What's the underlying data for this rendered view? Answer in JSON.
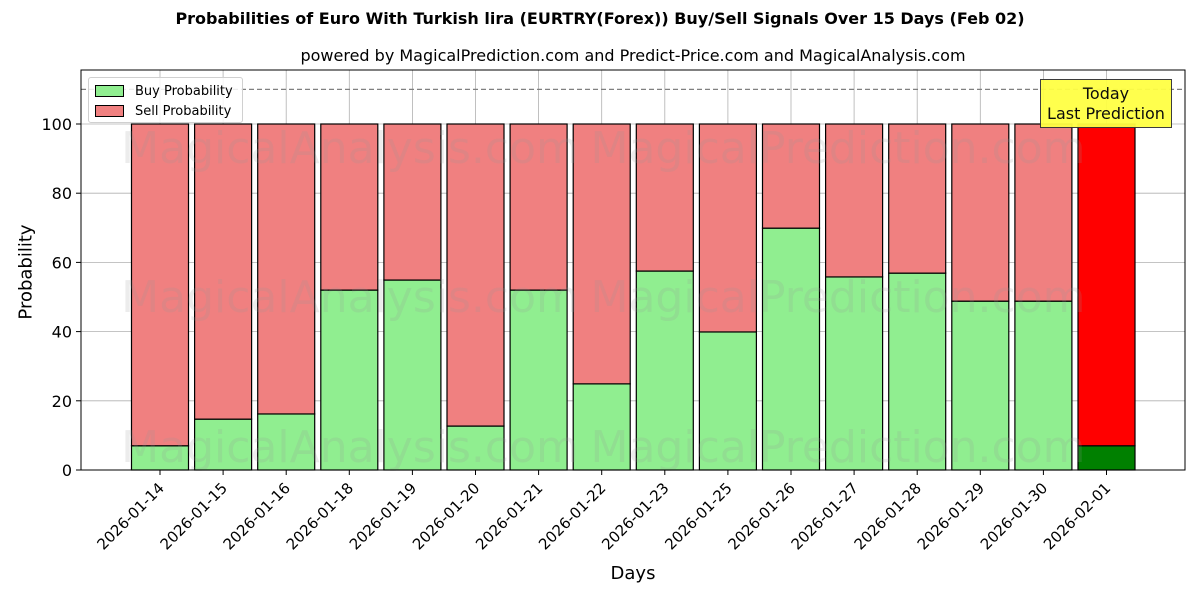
{
  "title": "Probabilities of Euro With Turkish lira (EURTRY(Forex)) Buy/Sell Signals Over 15 Days (Feb 02)",
  "subtitle": "powered by MagicalPrediction.com and Predict-Price.com and MagicalAnalysis.com",
  "watermarks": [
    "MagicalAnalysis.com",
    "MagicalPrediction.com"
  ],
  "annotation": {
    "line1": "Today",
    "line2": "Last Prediction"
  },
  "legend": {
    "buy": "Buy Probability",
    "sell": "Sell Probability"
  },
  "colors": {
    "buy": "#90ee90",
    "sell": "#f08080",
    "today_buy": "#008000",
    "today_sell": "#ff0000",
    "annotation_bg": "#ffff44",
    "grid": "#b0b0b0",
    "reference_line": "#808080"
  },
  "chart_data": {
    "type": "bar",
    "stacked": true,
    "title": "Probabilities of Euro With Turkish lira (EURTRY(Forex)) Buy/Sell Signals Over 15 Days (Feb 02)",
    "subtitle": "powered by MagicalPrediction.com and Predict-Price.com and MagicalAnalysis.com",
    "xlabel": "Days",
    "ylabel": "Probability",
    "ylim": [
      0,
      115
    ],
    "yticks": [
      0,
      20,
      40,
      60,
      80,
      100
    ],
    "grid": true,
    "legend_position": "upper left",
    "reference_line_y": 110,
    "categories": [
      "2026-01-14",
      "2026-01-15",
      "2026-01-16",
      "2026-01-18",
      "2026-01-19",
      "2026-01-20",
      "2026-01-21",
      "2026-01-22",
      "2026-01-23",
      "2026-01-25",
      "2026-01-26",
      "2026-01-27",
      "2026-01-28",
      "2026-01-29",
      "2026-01-30",
      "2026-02-01"
    ],
    "series": [
      {
        "name": "Buy Probability",
        "values": [
          7,
          14.7,
          16.2,
          52,
          54.9,
          12.7,
          52,
          24.9,
          57.5,
          39.9,
          69.9,
          55.8,
          56.9,
          48.8,
          48.8,
          7
        ]
      },
      {
        "name": "Sell Probability",
        "values": [
          93,
          85.3,
          83.8,
          48,
          45.1,
          87.3,
          48,
          75.1,
          42.5,
          60.1,
          30.1,
          44.2,
          43.1,
          51.2,
          51.2,
          93
        ]
      }
    ],
    "highlighted_category": "2026-02-01",
    "annotations": [
      "Today\nLast Prediction"
    ]
  }
}
